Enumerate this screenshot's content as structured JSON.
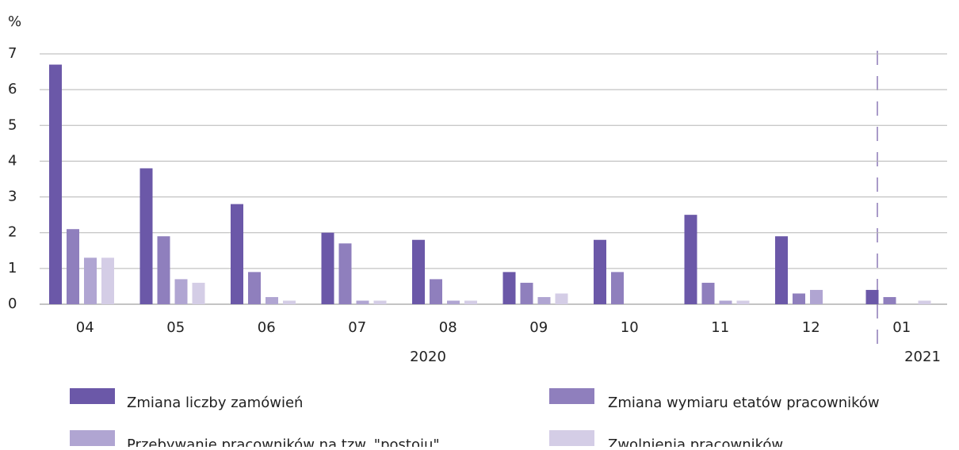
{
  "chart_data": {
    "type": "bar",
    "y_label": "%",
    "categories": [
      "04",
      "05",
      "06",
      "07",
      "08",
      "09",
      "10",
      "11",
      "12",
      "01"
    ],
    "year_labels": [
      "2020",
      "2021"
    ],
    "series": [
      {
        "name": "Zmiana liczby zamówień",
        "color": "#6b58a8",
        "values": [
          6.7,
          3.8,
          2.8,
          2.0,
          1.8,
          0.9,
          1.8,
          2.5,
          1.9,
          0.4
        ]
      },
      {
        "name": "Zmiana wymiaru etatów pracowników",
        "color": "#8f7fbd",
        "values": [
          2.1,
          1.9,
          0.9,
          1.7,
          0.7,
          0.6,
          0.9,
          0.6,
          0.3,
          0.2
        ]
      },
      {
        "name": "Przebywanie pracowników na tzw. \"postoju\"",
        "color": "#b0a5d2",
        "values": [
          1.3,
          0.7,
          0.2,
          0.1,
          0.1,
          0.2,
          0,
          0.1,
          0.4,
          0
        ]
      },
      {
        "name": "Zwolnienia pracowników",
        "color": "#d4cde6",
        "values": [
          1.3,
          0.6,
          0.1,
          0.1,
          0.1,
          0.3,
          0,
          0.1,
          0,
          0.1
        ]
      }
    ],
    "ylim": [
      0,
      7
    ],
    "yticks": [
      0,
      1,
      2,
      3,
      4,
      5,
      6,
      7
    ],
    "grid": true
  }
}
